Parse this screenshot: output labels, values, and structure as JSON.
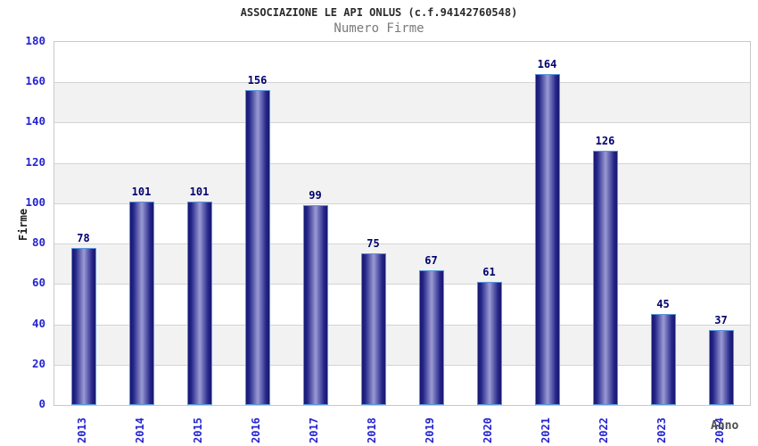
{
  "header": {
    "title": "ASSOCIAZIONE LE API ONLUS (c.f.94142760548)",
    "subtitle": "Numero Firme"
  },
  "chart_data": {
    "type": "bar",
    "title": "ASSOCIAZIONE LE API ONLUS (c.f.94142760548)",
    "subtitle": "Numero Firme",
    "xlabel": "Anno",
    "ylabel": "Firme",
    "categories": [
      "2013",
      "2014",
      "2015",
      "2016",
      "2017",
      "2018",
      "2019",
      "2020",
      "2021",
      "2022",
      "2023",
      "2024"
    ],
    "values": [
      78,
      101,
      101,
      156,
      99,
      75,
      67,
      61,
      164,
      126,
      45,
      37
    ],
    "ylim": [
      0,
      180
    ],
    "ytick_step": 20,
    "grid": true,
    "legend": "none",
    "colors": {
      "bar_dark": "#17176f",
      "bar_mid": "#9a9ad4",
      "bar_edge": "#5795dc",
      "axis_tick_label": "#2424d0",
      "value_label": "#00006e",
      "title_color": "#2b2b2b",
      "subtitle_color": "#7a7a7a",
      "xlabel_color": "#4d4d4d",
      "band_alt": "#f2f2f2",
      "grid_line": "#d4d4d4",
      "plot_border": "#c9c9c9"
    }
  }
}
